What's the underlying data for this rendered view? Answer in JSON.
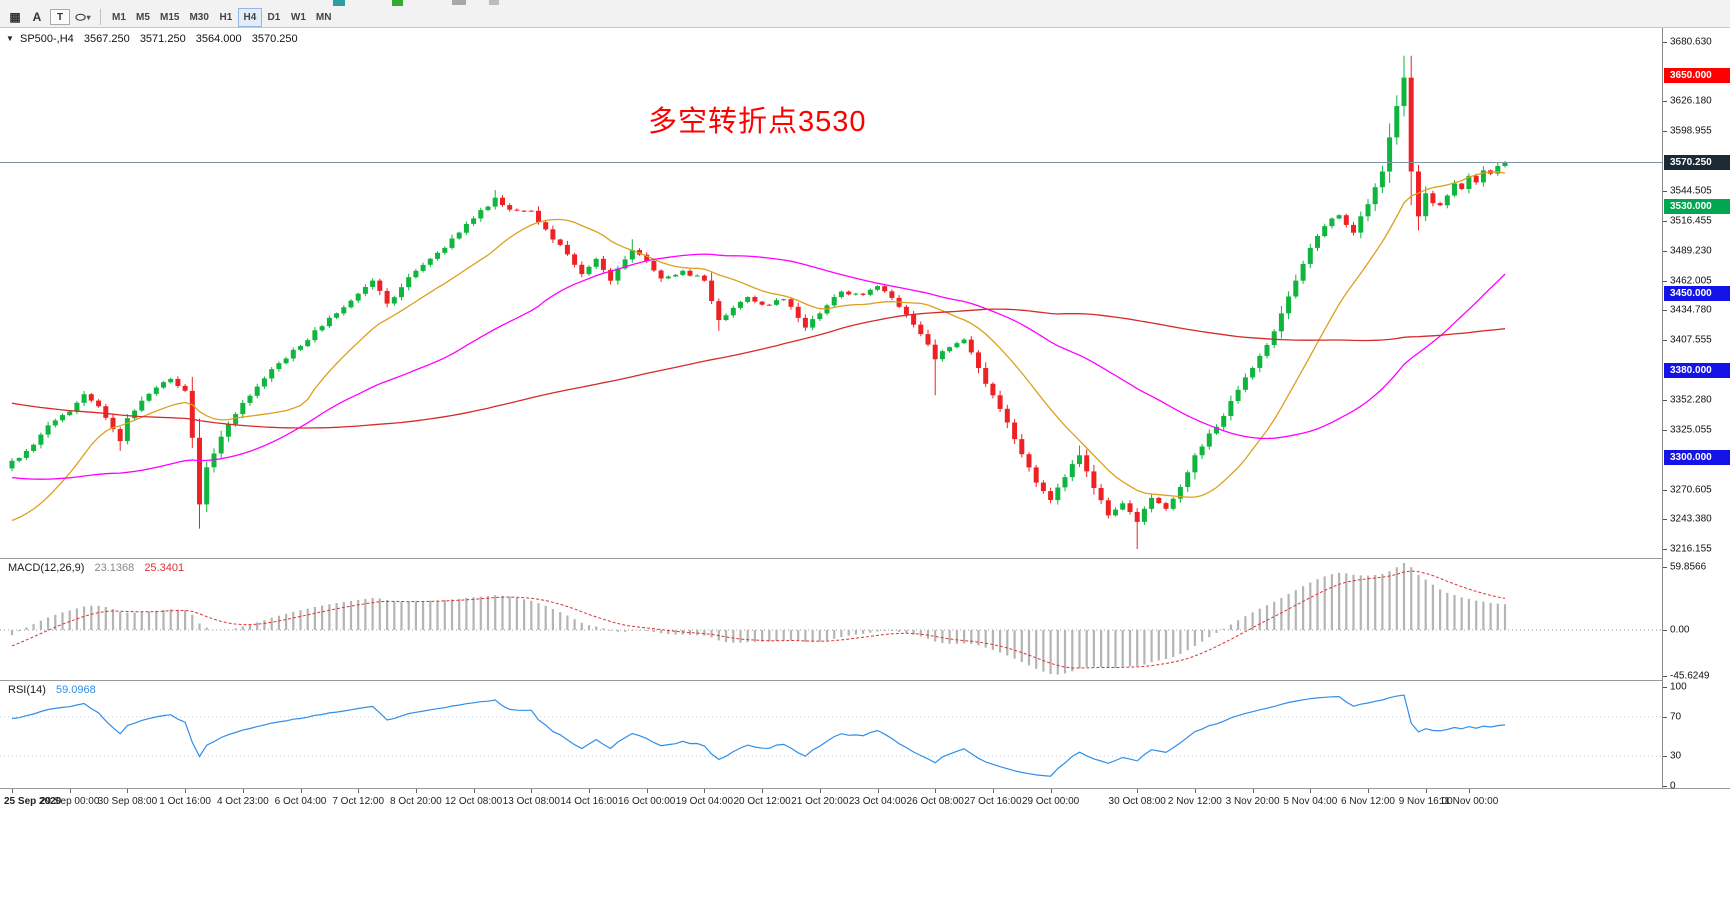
{
  "toolbar": {
    "icons": [
      {
        "name": "chart-grid-icon",
        "glyph": "▦"
      },
      {
        "name": "font-tool-icon",
        "glyph": "A"
      },
      {
        "name": "text-tool-icon",
        "glyph": "T"
      },
      {
        "name": "shapes-tool-icon",
        "glyph": "⬭"
      },
      {
        "name": "dropdown-caret-icon",
        "glyph": "▾"
      }
    ],
    "timeframes": [
      "M1",
      "M5",
      "M15",
      "M30",
      "H1",
      "H4",
      "D1",
      "W1",
      "MN"
    ],
    "active_timeframe": "H4"
  },
  "chart": {
    "header": {
      "marker": "▼",
      "symbol_tf": "SP500-,H4",
      "open": "3567.250",
      "high": "3571.250",
      "low": "3564.000",
      "close": "3570.250"
    },
    "annotation": {
      "text": "多空转折点3530",
      "color": "#ff0000"
    }
  },
  "macd_panel": {
    "title": "MACD(12,26,9)",
    "value_main": "23.1368",
    "value_signal": "25.3401",
    "colors": {
      "main": "#8a8a8a",
      "signal": "#dd3333"
    }
  },
  "rsi_panel": {
    "title": "RSI(14)",
    "value": "59.0968",
    "color": "#2f8fe8"
  },
  "chart_data": {
    "type": "candlestick",
    "symbol": "SP500-",
    "timeframe": "H4",
    "bars": 208,
    "seed": 7,
    "noise": 2.0,
    "y_min": 3216.155,
    "y_max": 3680.63,
    "candle_up": "#0eb53e",
    "candle_down": "#ee2224",
    "y_ticks": [
      {
        "label": "3680.630",
        "value": 3680.63
      },
      {
        "label": "3626.180",
        "value": 3626.18
      },
      {
        "label": "3598.955",
        "value": 3598.955
      },
      {
        "label": "3544.505",
        "value": 3544.505
      },
      {
        "label": "3516.455",
        "value": 3516.455
      },
      {
        "label": "3489.230",
        "value": 3489.23
      },
      {
        "label": "3462.005",
        "value": 3462.005
      },
      {
        "label": "3434.780",
        "value": 3434.78
      },
      {
        "label": "3407.555",
        "value": 3407.555
      },
      {
        "label": "3352.280",
        "value": 3352.28
      },
      {
        "label": "3325.055",
        "value": 3325.055
      },
      {
        "label": "3270.605",
        "value": 3270.605
      },
      {
        "label": "3243.380",
        "value": 3243.38
      },
      {
        "label": "3216.155",
        "value": 3216.155
      }
    ],
    "time_labels": [
      {
        "text": "25 Sep 2020",
        "bar": 0
      },
      {
        "text": "29 Sep 00:00",
        "bar": 8
      },
      {
        "text": "30 Sep 08:00",
        "bar": 16
      },
      {
        "text": "1 Oct 16:00",
        "bar": 24
      },
      {
        "text": "4 Oct 23:00",
        "bar": 32
      },
      {
        "text": "6 Oct 04:00",
        "bar": 40
      },
      {
        "text": "7 Oct 12:00",
        "bar": 48
      },
      {
        "text": "8 Oct 20:00",
        "bar": 56
      },
      {
        "text": "12 Oct 08:00",
        "bar": 64
      },
      {
        "text": "13 Oct 08:00",
        "bar": 72
      },
      {
        "text": "14 Oct 16:00",
        "bar": 80
      },
      {
        "text": "16 Oct 00:00",
        "bar": 88
      },
      {
        "text": "19 Oct 04:00",
        "bar": 96
      },
      {
        "text": "20 Oct 12:00",
        "bar": 104
      },
      {
        "text": "21 Oct 20:00",
        "bar": 112
      },
      {
        "text": "23 Oct 04:00",
        "bar": 120
      },
      {
        "text": "26 Oct 08:00",
        "bar": 128
      },
      {
        "text": "27 Oct 16:00",
        "bar": 136
      },
      {
        "text": "29 Oct 00:00",
        "bar": 144
      },
      {
        "text": "30 Oct 08:00",
        "bar": 156
      },
      {
        "text": "2 Nov 12:00",
        "bar": 164
      },
      {
        "text": "3 Nov 20:00",
        "bar": 172
      },
      {
        "text": "5 Nov 04:00",
        "bar": 180
      },
      {
        "text": "6 Nov 12:00",
        "bar": 188
      },
      {
        "text": "9 Nov 16:00",
        "bar": 196
      },
      {
        "text": "11 Nov 00:00",
        "bar": 202
      }
    ],
    "close_path": [
      [
        0,
        3297
      ],
      [
        2,
        3306
      ],
      [
        4,
        3321
      ],
      [
        6,
        3334
      ],
      [
        8,
        3342
      ],
      [
        10,
        3358
      ],
      [
        12,
        3347
      ],
      [
        14,
        3326
      ],
      [
        15,
        3315
      ],
      [
        16,
        3336
      ],
      [
        18,
        3352
      ],
      [
        20,
        3364
      ],
      [
        22,
        3372
      ],
      [
        24,
        3361
      ],
      [
        25,
        3318
      ],
      [
        26,
        3257
      ],
      [
        27,
        3291
      ],
      [
        29,
        3319
      ],
      [
        32,
        3350
      ],
      [
        36,
        3381
      ],
      [
        40,
        3402
      ],
      [
        44,
        3428
      ],
      [
        48,
        3450
      ],
      [
        50,
        3462
      ],
      [
        52,
        3441
      ],
      [
        54,
        3456
      ],
      [
        56,
        3471
      ],
      [
        60,
        3492
      ],
      [
        64,
        3519
      ],
      [
        67,
        3538
      ],
      [
        69,
        3527
      ],
      [
        72,
        3526
      ],
      [
        74,
        3509
      ],
      [
        77,
        3486
      ],
      [
        79,
        3468
      ],
      [
        81,
        3482
      ],
      [
        83,
        3462
      ],
      [
        86,
        3490
      ],
      [
        88,
        3480
      ],
      [
        90,
        3464
      ],
      [
        93,
        3471
      ],
      [
        96,
        3462
      ],
      [
        98,
        3426
      ],
      [
        100,
        3437
      ],
      [
        102,
        3447
      ],
      [
        104,
        3440
      ],
      [
        107,
        3445
      ],
      [
        110,
        3419
      ],
      [
        112,
        3432
      ],
      [
        115,
        3452
      ],
      [
        118,
        3449
      ],
      [
        120,
        3457
      ],
      [
        123,
        3438
      ],
      [
        126,
        3413
      ],
      [
        128,
        3390
      ],
      [
        130,
        3401
      ],
      [
        132,
        3408
      ],
      [
        134,
        3382
      ],
      [
        136,
        3357
      ],
      [
        138,
        3332
      ],
      [
        140,
        3303
      ],
      [
        142,
        3277
      ],
      [
        144,
        3261
      ],
      [
        146,
        3282
      ],
      [
        148,
        3302
      ],
      [
        150,
        3272
      ],
      [
        152,
        3247
      ],
      [
        154,
        3258
      ],
      [
        156,
        3241
      ],
      [
        158,
        3263
      ],
      [
        160,
        3253
      ],
      [
        162,
        3273
      ],
      [
        164,
        3302
      ],
      [
        166,
        3322
      ],
      [
        168,
        3338
      ],
      [
        170,
        3362
      ],
      [
        172,
        3382
      ],
      [
        174,
        3403
      ],
      [
        176,
        3432
      ],
      [
        178,
        3462
      ],
      [
        180,
        3492
      ],
      [
        182,
        3512
      ],
      [
        184,
        3522
      ],
      [
        186,
        3506
      ],
      [
        188,
        3532
      ],
      [
        190,
        3562
      ],
      [
        192,
        3622
      ],
      [
        193,
        3648
      ],
      [
        194,
        3562
      ],
      [
        195,
        3521
      ],
      [
        196,
        3542
      ],
      [
        197,
        3533
      ],
      [
        198,
        3531
      ],
      [
        199,
        3540
      ],
      [
        200,
        3551
      ],
      [
        201,
        3546
      ],
      [
        202,
        3558
      ],
      [
        203,
        3552
      ],
      [
        204,
        3563
      ],
      [
        205,
        3560
      ],
      [
        206,
        3567
      ],
      [
        207,
        3570.25
      ]
    ],
    "wick_overrides": [
      {
        "b": 15,
        "low": 3306
      },
      {
        "b": 26,
        "low": 3245
      },
      {
        "b": 67,
        "high": 3545
      },
      {
        "b": 86,
        "high": 3500
      },
      {
        "b": 98,
        "low": 3416
      },
      {
        "b": 128,
        "low": 3357
      },
      {
        "b": 148,
        "high": 3311
      },
      {
        "b": 156,
        "low": 3216.2
      },
      {
        "b": 193,
        "high": 3668
      },
      {
        "b": 194,
        "low": 3540
      },
      {
        "b": 195,
        "low": 3508
      }
    ],
    "prehistory_path": [
      [
        -120,
        3432
      ],
      [
        -100,
        3396
      ],
      [
        -85,
        3421
      ],
      [
        -70,
        3391
      ],
      [
        -55,
        3356
      ],
      [
        -48,
        3331
      ],
      [
        -36,
        3311
      ],
      [
        -24,
        3291
      ],
      [
        -16,
        3261
      ],
      [
        -10,
        3226
      ],
      [
        -5,
        3213
      ],
      [
        -1,
        3290
      ]
    ],
    "moving_averages": [
      {
        "period": 16,
        "color": "#dda01e"
      },
      {
        "period": 48,
        "color": "#ff00ff"
      },
      {
        "period": 120,
        "color": "#d62b2b"
      }
    ],
    "horizontal_levels": [
      {
        "value": 3650,
        "label": "3650.000",
        "color": "#ff0000",
        "width": 2
      },
      {
        "value": 3530,
        "label": "3530.000",
        "color": "#00a651",
        "width": 2
      },
      {
        "value": 3450,
        "label": "3450.000",
        "color": "#1414e8",
        "width": 2
      },
      {
        "value": 3380,
        "label": "3380.000",
        "color": "#1414e8",
        "width": 2
      },
      {
        "value": 3300,
        "label": "3300.000",
        "color": "#1414e8",
        "width": 2
      }
    ],
    "current_price": {
      "value": 3570.25,
      "label": "3570.250",
      "line_color": "#7d93a6",
      "badge_color": "#1c2a36"
    },
    "macd": {
      "fast": 12,
      "slow": 26,
      "signal": 9,
      "hist_color": "#b4b4b4",
      "signal_color": "#dd3333",
      "axis": [
        {
          "label": "59.8566",
          "value": 59.8566
        },
        {
          "label": "0.00",
          "value": 0
        },
        {
          "label": "-45.6249",
          "value": -45.6249
        }
      ]
    },
    "rsi": {
      "period": 14,
      "color": "#2f8fe8",
      "levels": [
        70,
        30
      ],
      "axis": [
        {
          "label": "100",
          "value": 100
        },
        {
          "label": "70",
          "value": 70
        },
        {
          "label": "30",
          "value": 30
        },
        {
          "label": "0",
          "value": 0
        }
      ]
    }
  }
}
